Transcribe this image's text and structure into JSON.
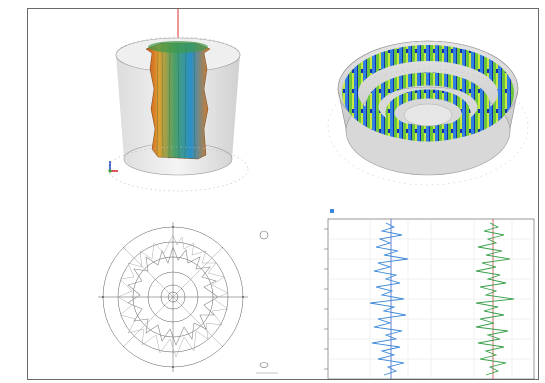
{
  "panels": {
    "cylinder": {
      "view": "3d-cylinder",
      "colors": [
        "#e0402a",
        "#f0c030",
        "#70b040",
        "#2a9fd0",
        "#1a3fa0"
      ]
    },
    "disc": {
      "view": "3d-rings",
      "colors": [
        "#1226a8",
        "#2f7fd8",
        "#69c23a",
        "#c8e83a"
      ]
    },
    "polar": {
      "view": "polar-plot"
    },
    "logs": {
      "view": "depth-logs",
      "legend_label": "",
      "track1_color": "#3a88d8",
      "track2_color": "#3aa04a"
    }
  }
}
